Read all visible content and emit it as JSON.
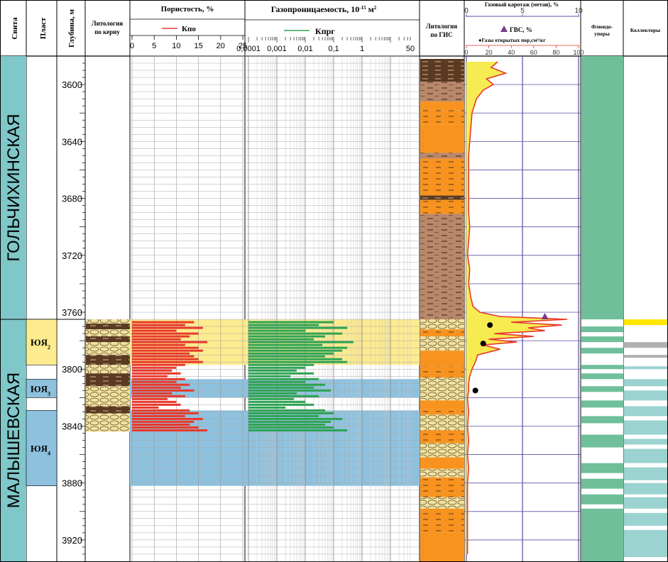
{
  "colors": {
    "teal": "#7fc7c9",
    "yellow_zone": "#fdeb8f",
    "blue_zone": "#8ec1de",
    "red_curve": "#e8392b",
    "green_curve": "#2ea354",
    "sand": "#f2e2a2",
    "orange": "#f7931e",
    "brown": "#b9876a",
    "dark_brown": "#5a3a22",
    "gas_blue": "#5b4ea2",
    "flood_green": "#6fbf9a",
    "coll_teal": "#9bd3d0",
    "coll_yellow": "#ffe600",
    "coll_gray": "#b0b0b0"
  },
  "header": {
    "svita": "Свита",
    "plast": "Пласт",
    "depth": "Глубина, м",
    "lith_core_1": "Литология",
    "lith_core_2": "по керну",
    "porosity_title": "Пористость, %",
    "porosity_legend": "Кпо",
    "perm_title_main": "Газопроницаемость, 10",
    "perm_title_exp": "-15",
    "perm_title_unit": " м",
    "perm_title_sq": "2",
    "perm_legend": "Кпрг",
    "lith_gis_1": "Литология",
    "lith_gis_2": "по ГИС",
    "gas_title": "Газовый каротаж (метан), %",
    "gvs_legend": "ГВС, %",
    "open_pore_legend": "●Газы открытых пор,см³/кг",
    "fluid_1": "Флюидо-",
    "fluid_2": "упоры",
    "collectors": "Коллекторы"
  },
  "formations": [
    {
      "name": "ГОЛЬЧИХИНСКАЯ",
      "top": 3580,
      "bottom": 3765
    },
    {
      "name": "МАЛЫШЕВСКАЯ",
      "top": 3765,
      "bottom": 3935
    }
  ],
  "layers": [
    {
      "name": "ЮЯ",
      "sub": "2",
      "top": 3765,
      "bottom": 3797,
      "color": "yellow"
    },
    {
      "name": "ЮЯ",
      "sub": "3",
      "top": 3807,
      "bottom": 3820,
      "color": "blue"
    },
    {
      "name": "ЮЯ",
      "sub": "4",
      "top": 3829,
      "bottom": 3882,
      "color": "blue"
    }
  ],
  "depth_axis": {
    "min": 3580,
    "max": 3935,
    "labels": [
      3600,
      3640,
      3680,
      3720,
      3760,
      3800,
      3840,
      3880,
      3920
    ]
  },
  "porosity_axis": {
    "ticks": [
      "0",
      "5",
      "10",
      "15",
      "20",
      "25"
    ],
    "min": 0,
    "max": 25
  },
  "perm_axis": {
    "ticks": [
      "0,0001",
      "0,001",
      "0,01",
      "0,1",
      "1",
      "50"
    ]
  },
  "gas_axis": {
    "top_ticks": [
      "0",
      "5",
      "10"
    ],
    "bottom_ticks": [
      "0",
      "20",
      "40",
      "60",
      "80",
      "100"
    ]
  },
  "chart_data": {
    "type": "line",
    "title": "",
    "porosity_core": {
      "depths": [
        3767,
        3769,
        3771,
        3773,
        3775,
        3777,
        3779,
        3781,
        3783,
        3785,
        3787,
        3789,
        3791,
        3793,
        3795,
        3797,
        3799,
        3801,
        3803,
        3805,
        3807,
        3809,
        3811,
        3813,
        3815,
        3817,
        3819,
        3821,
        3823,
        3825,
        3827,
        3829,
        3831,
        3833,
        3835,
        3837,
        3839,
        3841,
        3843
      ],
      "values": [
        14,
        12,
        16,
        10,
        15,
        13,
        11,
        17,
        12,
        15,
        16,
        13,
        14,
        15,
        16,
        12,
        10,
        9,
        11,
        8,
        12,
        10,
        13,
        11,
        14,
        9,
        12,
        8,
        10,
        11,
        6,
        13,
        15,
        12,
        16,
        14,
        13,
        15,
        17
      ]
    },
    "permeability_core": {
      "depths": [
        3767,
        3769,
        3771,
        3773,
        3775,
        3777,
        3779,
        3781,
        3783,
        3785,
        3787,
        3789,
        3791,
        3793,
        3795,
        3797,
        3799,
        3801,
        3803,
        3805,
        3807,
        3809,
        3811,
        3813,
        3815,
        3817,
        3819,
        3821,
        3823,
        3825,
        3827,
        3829,
        3831,
        3833,
        3835,
        3837,
        3839,
        3841,
        3843
      ],
      "values": [
        0.1,
        0.03,
        0.3,
        0.01,
        0.2,
        0.05,
        0.02,
        0.5,
        0.04,
        0.3,
        0.2,
        0.1,
        0.05,
        0.2,
        0.3,
        0.02,
        0.01,
        0.005,
        0.02,
        0.003,
        0.03,
        0.01,
        0.05,
        0.02,
        0.08,
        0.005,
        0.03,
        0.004,
        0.01,
        0.02,
        0.002,
        0.05,
        0.1,
        0.03,
        0.2,
        0.08,
        0.05,
        0.1,
        0.3
      ]
    },
    "gas_methane_percent": {
      "depths": [
        3584,
        3588,
        3592,
        3596,
        3600,
        3604,
        3610,
        3620,
        3630,
        3640,
        3650,
        3660,
        3670,
        3680,
        3690,
        3700,
        3710,
        3720,
        3730,
        3740,
        3750,
        3756,
        3760,
        3763,
        3765,
        3767,
        3769,
        3771,
        3773,
        3775,
        3777,
        3779,
        3781,
        3783,
        3786,
        3790,
        3795,
        3800,
        3805,
        3810,
        3815,
        3820,
        3830,
        3840,
        3850,
        3860,
        3870,
        3880,
        3890,
        3900,
        3910,
        3920,
        3930
      ],
      "values": [
        28,
        22,
        35,
        18,
        24,
        15,
        9,
        5,
        4,
        3,
        2,
        2,
        2,
        2,
        2,
        3,
        2,
        1,
        3,
        2,
        4,
        6,
        12,
        30,
        90,
        40,
        85,
        55,
        70,
        25,
        60,
        20,
        45,
        15,
        30,
        10,
        8,
        5,
        3,
        2,
        2,
        1,
        2,
        1,
        2,
        1,
        2,
        1,
        1,
        1,
        1,
        1,
        1
      ]
    },
    "gvs_percent": {
      "depth": 3763,
      "value": 70
    },
    "open_pore_gas": {
      "depths": [
        3769,
        3782,
        3815
      ],
      "values": [
        21,
        15,
        8
      ]
    }
  },
  "lith_gis": [
    {
      "top": 3582,
      "bottom": 3598,
      "type": "dark_shale"
    },
    {
      "top": 3598,
      "bottom": 3612,
      "type": "brown_shale"
    },
    {
      "top": 3612,
      "bottom": 3618,
      "type": "orange_sand"
    },
    {
      "top": 3618,
      "bottom": 3628,
      "type": "orange_silt"
    },
    {
      "top": 3628,
      "bottom": 3648,
      "type": "orange_sand"
    },
    {
      "top": 3648,
      "bottom": 3652,
      "type": "brown_shale"
    },
    {
      "top": 3652,
      "bottom": 3678,
      "type": "orange_silt"
    },
    {
      "top": 3678,
      "bottom": 3681,
      "type": "dark_shale"
    },
    {
      "top": 3681,
      "bottom": 3691,
      "type": "orange_silt"
    },
    {
      "top": 3691,
      "bottom": 3765,
      "type": "brown_shale"
    },
    {
      "top": 3765,
      "bottom": 3772,
      "type": "sand_pattern"
    },
    {
      "top": 3772,
      "bottom": 3777,
      "type": "orange_silt"
    },
    {
      "top": 3777,
      "bottom": 3787,
      "type": "sand_pattern"
    },
    {
      "top": 3787,
      "bottom": 3798,
      "type": "orange_sand"
    },
    {
      "top": 3798,
      "bottom": 3806,
      "type": "orange_silt"
    },
    {
      "top": 3806,
      "bottom": 3822,
      "type": "sand_pattern"
    },
    {
      "top": 3822,
      "bottom": 3828,
      "type": "orange_sand"
    },
    {
      "top": 3828,
      "bottom": 3832,
      "type": "orange_silt"
    },
    {
      "top": 3832,
      "bottom": 3843,
      "type": "sand_pattern"
    },
    {
      "top": 3843,
      "bottom": 3852,
      "type": "orange_silt"
    },
    {
      "top": 3852,
      "bottom": 3862,
      "type": "sand_pattern"
    },
    {
      "top": 3862,
      "bottom": 3870,
      "type": "orange_sand"
    },
    {
      "top": 3870,
      "bottom": 3876,
      "type": "sand_pattern"
    },
    {
      "top": 3876,
      "bottom": 3890,
      "type": "orange_silt"
    },
    {
      "top": 3890,
      "bottom": 3898,
      "type": "sand_pattern"
    },
    {
      "top": 3898,
      "bottom": 3915,
      "type": "orange_silt"
    },
    {
      "top": 3915,
      "bottom": 3935,
      "type": "orange_sand"
    }
  ],
  "lith_core": [
    {
      "top": 3765,
      "bottom": 3768,
      "type": "sand_pattern"
    },
    {
      "top": 3768,
      "bottom": 3772,
      "type": "dark_shale"
    },
    {
      "top": 3772,
      "bottom": 3777,
      "type": "sand_pattern"
    },
    {
      "top": 3777,
      "bottom": 3781,
      "type": "dark_shale"
    },
    {
      "top": 3781,
      "bottom": 3790,
      "type": "sand_pattern"
    },
    {
      "top": 3790,
      "bottom": 3797,
      "type": "dark_shale"
    },
    {
      "top": 3797,
      "bottom": 3803,
      "type": "sand_pattern"
    },
    {
      "top": 3803,
      "bottom": 3812,
      "type": "dark_shale"
    },
    {
      "top": 3812,
      "bottom": 3826,
      "type": "sand_pattern"
    },
    {
      "top": 3826,
      "bottom": 3831,
      "type": "dark_shale"
    },
    {
      "top": 3831,
      "bottom": 3844,
      "type": "sand_pattern"
    }
  ],
  "fluid_seals_white": [
    [
      3765,
      3770
    ],
    [
      3774,
      3777
    ],
    [
      3781,
      3785
    ],
    [
      3789,
      3797
    ],
    [
      3800,
      3803
    ],
    [
      3807,
      3812
    ],
    [
      3816,
      3822
    ],
    [
      3827,
      3833
    ],
    [
      3838,
      3846
    ],
    [
      3855,
      3866
    ],
    [
      3873,
      3877
    ],
    [
      3884,
      3888
    ],
    [
      3895,
      3898
    ]
  ],
  "collectors": [
    {
      "top": 3765,
      "bottom": 3769,
      "color": "yellow"
    },
    {
      "top": 3781,
      "bottom": 3785,
      "color": "gray"
    },
    {
      "top": 3790,
      "bottom": 3792,
      "color": "gray"
    },
    {
      "top": 3798,
      "bottom": 3800,
      "color": "teal"
    },
    {
      "top": 3807,
      "bottom": 3812,
      "color": "teal"
    },
    {
      "top": 3815,
      "bottom": 3822,
      "color": "teal"
    },
    {
      "top": 3826,
      "bottom": 3833,
      "color": "teal"
    },
    {
      "top": 3836,
      "bottom": 3846,
      "color": "teal"
    },
    {
      "top": 3849,
      "bottom": 3853,
      "color": "teal"
    },
    {
      "top": 3856,
      "bottom": 3866,
      "color": "teal"
    },
    {
      "top": 3869,
      "bottom": 3878,
      "color": "teal"
    },
    {
      "top": 3880,
      "bottom": 3888,
      "color": "teal"
    },
    {
      "top": 3890,
      "bottom": 3898,
      "color": "teal"
    },
    {
      "top": 3901,
      "bottom": 3910,
      "color": "teal"
    },
    {
      "top": 3913,
      "bottom": 3932,
      "color": "teal"
    }
  ]
}
